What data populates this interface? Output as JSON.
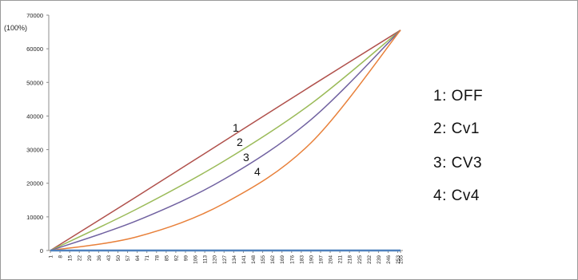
{
  "chart_data": {
    "type": "line",
    "title": "",
    "xlabel": "",
    "ylabel": "",
    "y_top_label": "(100%)",
    "ylim": [
      0,
      70000
    ],
    "yticks": [
      0,
      10000,
      20000,
      30000,
      40000,
      50000,
      60000,
      70000
    ],
    "xlim": [
      1,
      255
    ],
    "xticks": [
      1,
      8,
      15,
      22,
      29,
      36,
      43,
      50,
      57,
      64,
      71,
      78,
      85,
      92,
      99,
      106,
      113,
      120,
      127,
      134,
      141,
      148,
      155,
      162,
      169,
      176,
      183,
      190,
      197,
      204,
      211,
      218,
      225,
      232,
      239,
      246,
      253,
      255
    ],
    "grid": false,
    "legend_position": "right",
    "legend": [
      "1: OFF",
      "2: Cv1",
      "3: CV3",
      "4: Cv4"
    ],
    "series": [
      {
        "label": "1",
        "color": "#b0504b",
        "x": [
          1,
          64,
          127,
          190,
          255
        ],
        "y": [
          0,
          16128,
          32512,
          48896,
          65535
        ]
      },
      {
        "label": "2",
        "color": "#9bbb59",
        "x": [
          1,
          64,
          127,
          190,
          255
        ],
        "y": [
          0,
          12400,
          26600,
          43600,
          65535
        ]
      },
      {
        "label": "3",
        "color": "#7061a0",
        "x": [
          1,
          64,
          127,
          190,
          255
        ],
        "y": [
          0,
          8900,
          21200,
          38900,
          65535
        ]
      },
      {
        "label": "4",
        "color": "#e8803a",
        "x": [
          1,
          64,
          127,
          190,
          255
        ],
        "y": [
          0,
          4100,
          14000,
          32000,
          65535
        ]
      },
      {
        "label": "",
        "color": "#4f81bd",
        "x": [
          1,
          255
        ],
        "y": [
          0,
          0
        ]
      }
    ]
  }
}
